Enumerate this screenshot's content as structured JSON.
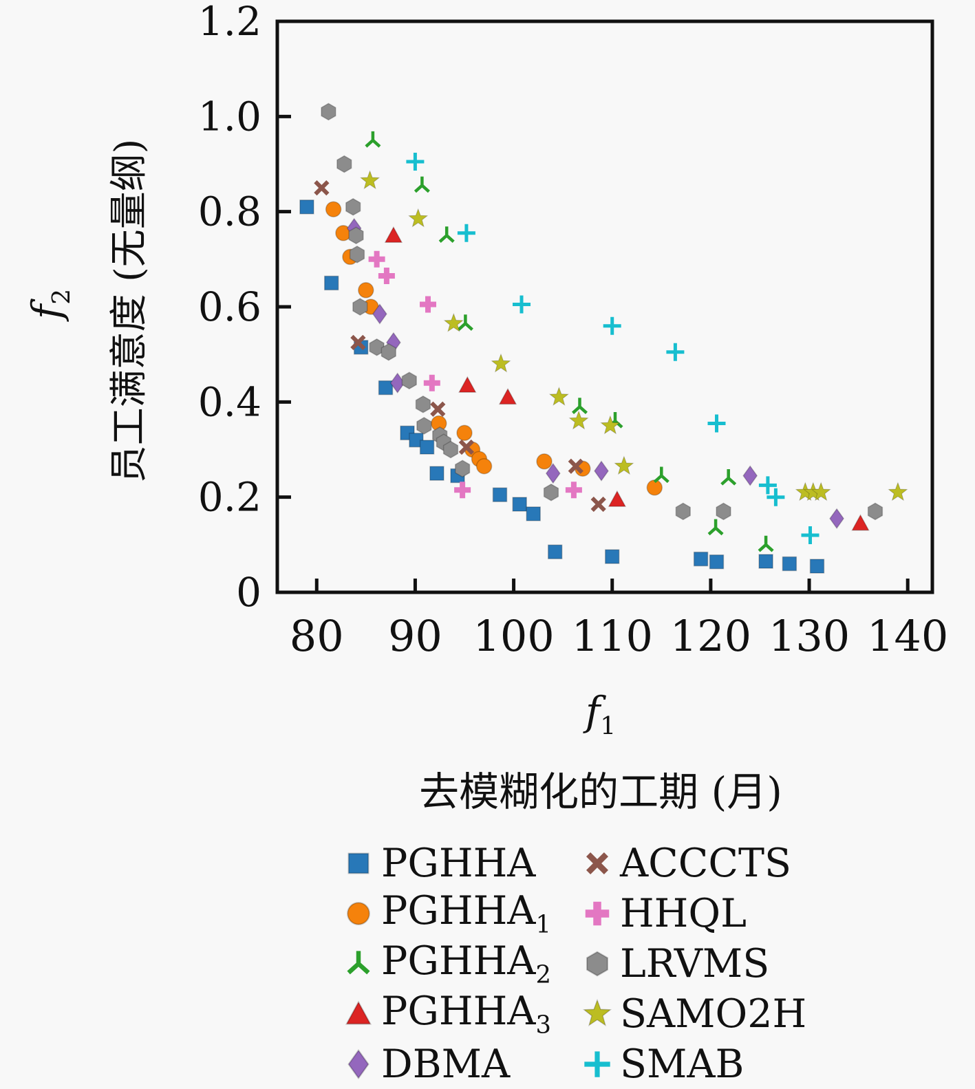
{
  "chart_data": {
    "type": "scatter",
    "title": "",
    "xlabel": {
      "var": "f",
      "sub": "1",
      "desc": "去模糊化的工期 (月)"
    },
    "ylabel": {
      "var": "f",
      "sub": "2",
      "desc": "员工满意度 (无量纲)"
    },
    "xlim": [
      76,
      142.5
    ],
    "ylim": [
      0,
      1.2
    ],
    "grid": false,
    "legend_position": "below-chart, two columns",
    "axis_color": "#111111",
    "background_color": "#f8f8f8",
    "xticks": [
      80,
      90,
      100,
      110,
      120,
      130,
      140
    ],
    "xtick_labels": [
      "80",
      "90",
      "100",
      "110",
      "120",
      "130",
      "140"
    ],
    "yticks": [
      0,
      0.2,
      0.4,
      0.6,
      0.8,
      1.0,
      1.2
    ],
    "ytick_labels": [
      "0",
      "0.2",
      "0.4",
      "0.6",
      "0.8",
      "1.0",
      "1.2"
    ],
    "series": [
      {
        "name": "PGHHA",
        "sub": "",
        "marker": "square",
        "color": "#2878b8",
        "points": [
          [
            79,
            0.81
          ],
          [
            81.5,
            0.65
          ],
          [
            84.5,
            0.515
          ],
          [
            87,
            0.43
          ],
          [
            89.2,
            0.335
          ],
          [
            90.1,
            0.32
          ],
          [
            91.2,
            0.305
          ],
          [
            92.2,
            0.25
          ],
          [
            94.3,
            0.245
          ],
          [
            98.6,
            0.205
          ],
          [
            100.6,
            0.185
          ],
          [
            102,
            0.165
          ],
          [
            104.2,
            0.085
          ],
          [
            110,
            0.075
          ],
          [
            119,
            0.07
          ],
          [
            120.6,
            0.064
          ],
          [
            125.6,
            0.065
          ],
          [
            128,
            0.06
          ],
          [
            130.8,
            0.055
          ]
        ]
      },
      {
        "name": "PGHHA",
        "sub": "1",
        "marker": "circle",
        "color": "#f5820b",
        "points": [
          [
            81.7,
            0.805
          ],
          [
            82.7,
            0.755
          ],
          [
            83.4,
            0.705
          ],
          [
            85,
            0.635
          ],
          [
            85.5,
            0.6
          ],
          [
            92.4,
            0.355
          ],
          [
            95,
            0.335
          ],
          [
            95.8,
            0.3
          ],
          [
            96.5,
            0.28
          ],
          [
            97,
            0.265
          ],
          [
            103.1,
            0.275
          ],
          [
            107,
            0.26
          ],
          [
            114.3,
            0.22
          ]
        ]
      },
      {
        "name": "PGHHA",
        "sub": "2",
        "marker": "tri",
        "color": "#2ca02c",
        "points": [
          [
            85.7,
            0.95
          ],
          [
            90.7,
            0.855
          ],
          [
            93.2,
            0.75
          ],
          [
            95.1,
            0.565
          ],
          [
            106.7,
            0.39
          ],
          [
            110.3,
            0.36
          ],
          [
            115,
            0.245
          ],
          [
            121.8,
            0.24
          ],
          [
            120.5,
            0.135
          ],
          [
            125.6,
            0.1
          ]
        ]
      },
      {
        "name": "PGHHA",
        "sub": "3",
        "marker": "triangle",
        "color": "#dc2423",
        "points": [
          [
            87.8,
            0.75
          ],
          [
            95.3,
            0.435
          ],
          [
            99.4,
            0.41
          ],
          [
            110.5,
            0.195
          ],
          [
            135.2,
            0.145
          ]
        ]
      },
      {
        "name": "DBMA",
        "sub": "",
        "marker": "diamond",
        "color": "#9467bd",
        "points": [
          [
            83.8,
            0.765
          ],
          [
            86.4,
            0.585
          ],
          [
            87.8,
            0.525
          ],
          [
            88.2,
            0.44
          ],
          [
            104,
            0.25
          ],
          [
            108.9,
            0.255
          ],
          [
            124,
            0.245
          ],
          [
            132.8,
            0.155
          ]
        ]
      },
      {
        "name": "ACCCTS",
        "sub": "",
        "marker": "x",
        "color": "#8c564b",
        "points": [
          [
            80.5,
            0.85
          ],
          [
            84.2,
            0.525
          ],
          [
            92.3,
            0.385
          ],
          [
            95.2,
            0.305
          ],
          [
            106.3,
            0.265
          ],
          [
            108.6,
            0.185
          ]
        ]
      },
      {
        "name": "HHQL",
        "sub": "",
        "marker": "plus-thick",
        "color": "#e377c2",
        "points": [
          [
            86.1,
            0.7
          ],
          [
            87.1,
            0.665
          ],
          [
            91.3,
            0.605
          ],
          [
            91.7,
            0.44
          ],
          [
            94.8,
            0.215
          ],
          [
            106.1,
            0.215
          ]
        ]
      },
      {
        "name": "LRVMS",
        "sub": "",
        "marker": "hexagon",
        "color": "#8c8c8c",
        "points": [
          [
            81.2,
            1.01
          ],
          [
            82.8,
            0.9
          ],
          [
            83.7,
            0.81
          ],
          [
            84,
            0.75
          ],
          [
            84.1,
            0.71
          ],
          [
            84.4,
            0.6
          ],
          [
            86.1,
            0.515
          ],
          [
            87.3,
            0.505
          ],
          [
            89.4,
            0.445
          ],
          [
            90.8,
            0.395
          ],
          [
            90.9,
            0.35
          ],
          [
            92.5,
            0.33
          ],
          [
            92.9,
            0.315
          ],
          [
            93.6,
            0.3
          ],
          [
            94.8,
            0.26
          ],
          [
            103.8,
            0.21
          ],
          [
            117.2,
            0.17
          ],
          [
            121.3,
            0.17
          ],
          [
            136.7,
            0.17
          ]
        ]
      },
      {
        "name": "SAMO2H",
        "sub": "",
        "marker": "star",
        "color": "#bcbd22",
        "points": [
          [
            85.4,
            0.865
          ],
          [
            90.3,
            0.785
          ],
          [
            93.9,
            0.565
          ],
          [
            98.7,
            0.48
          ],
          [
            104.6,
            0.41
          ],
          [
            106.6,
            0.36
          ],
          [
            109.8,
            0.35
          ],
          [
            111.2,
            0.265
          ],
          [
            129.6,
            0.21
          ],
          [
            130.4,
            0.21
          ],
          [
            131.2,
            0.21
          ],
          [
            139,
            0.21
          ]
        ]
      },
      {
        "name": "SMAB",
        "sub": "",
        "marker": "plus-thin",
        "color": "#17becf",
        "points": [
          [
            90,
            0.905
          ],
          [
            95.2,
            0.755
          ],
          [
            100.8,
            0.605
          ],
          [
            110,
            0.56
          ],
          [
            116.4,
            0.505
          ],
          [
            120.6,
            0.355
          ],
          [
            125.8,
            0.225
          ],
          [
            126.6,
            0.2
          ],
          [
            130.1,
            0.12
          ]
        ]
      }
    ]
  }
}
